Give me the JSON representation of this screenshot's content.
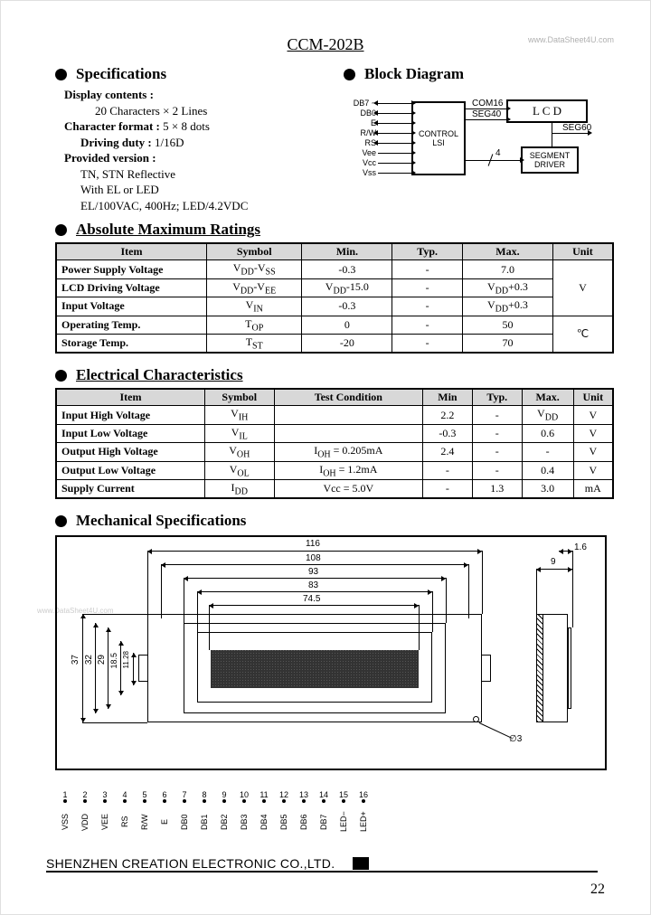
{
  "title": "CCM-202B",
  "watermark": "www.DataSheet4U.com",
  "headings": {
    "specs": "Specifications",
    "block": "Block Diagram",
    "abs": "Absolute Maximum Ratings",
    "elec": "Electrical Characteristics",
    "mech": "Mechanical Specifications"
  },
  "specifications": {
    "display_label": "Display contents :",
    "display_val": "20 Characters × 2 Lines",
    "char_label": "Character format : ",
    "char_val": "5 × 8 dots",
    "duty_label": "Driving duty : ",
    "duty_val": "1/16D",
    "prov_label": "Provided version :",
    "prov_1": "TN, STN Reflective",
    "prov_2": "With EL or LED",
    "prov_3": "EL/100VAC, 400Hz; LED/4.2VDC"
  },
  "block_signals": [
    "DB7 ~",
    "DB0",
    "E",
    "R/W",
    "RS",
    "Vee",
    "Vcc",
    "Vss"
  ],
  "block_labels": {
    "control": "CONTROL\nLSI",
    "lcd": "L  C  D",
    "seg": "SEGMENT\nDRIVER",
    "com16": "COM16",
    "seg40": "SEG40",
    "seg60": "SEG60",
    "four": "4"
  },
  "table_abs": {
    "columns": [
      "Item",
      "Symbol",
      "Min.",
      "Typ.",
      "Max.",
      "Unit"
    ],
    "rows": [
      [
        "Power Supply Voltage",
        "V<sub>DD</sub>-V<sub>SS</sub>",
        "-0.3",
        "-",
        "7.0",
        ""
      ],
      [
        "LCD Driving Voltage",
        "V<sub>DD</sub>-V<sub>EE</sub>",
        "V<sub>DD</sub>-15.0",
        "-",
        "V<sub>DD</sub>+0.3",
        "V"
      ],
      [
        "Input Voltage",
        "V<sub>IN</sub>",
        "-0.3",
        "-",
        "V<sub>DD</sub>+0.3",
        ""
      ],
      [
        "Operating Temp.",
        "T<sub>OP</sub>",
        "0",
        "-",
        "50",
        ""
      ],
      [
        "Storage Temp.",
        "T<sub>ST</sub>",
        "-20",
        "-",
        "70",
        "℃"
      ]
    ],
    "col_widths": [
      "150px",
      "95px",
      "90px",
      "70px",
      "90px",
      "60px"
    ]
  },
  "table_elec": {
    "columns": [
      "Item",
      "Symbol",
      "Test Condition",
      "Min",
      "Typ.",
      "Max.",
      "Unit"
    ],
    "rows": [
      [
        "Input High Voltage",
        "V<sub>IH</sub>",
        "",
        "2.2",
        "-",
        "V<sub>DD</sub>",
        "V"
      ],
      [
        "Input Low Voltage",
        "V<sub>IL</sub>",
        "",
        "-0.3",
        "-",
        "0.6",
        "V"
      ],
      [
        "Output High Voltage",
        "V<sub>OH</sub>",
        "I<sub>OH</sub> = 0.205mA",
        "2.4",
        "-",
        "-",
        "V"
      ],
      [
        "Output Low Voltage",
        "V<sub>OL</sub>",
        "I<sub>OH</sub> = 1.2mA",
        "-",
        "-",
        "0.4",
        "V"
      ],
      [
        "Supply Current",
        "I<sub>DD</sub>",
        "Vcc = 5.0V",
        "-",
        "1.3",
        "3.0",
        "mA"
      ]
    ],
    "col_widths": [
      "150px",
      "70px",
      "150px",
      "50px",
      "50px",
      "52px",
      "40px"
    ]
  },
  "mech": {
    "outer_w": "116",
    "inner_w1": "108",
    "inner_w2": "93",
    "inner_w3": "83",
    "view_w": "74.5",
    "h1": "37",
    "h2": "32",
    "h3": "29",
    "h4": "18.5",
    "h5": "11.28",
    "side_t": "1.6",
    "side_w": "9",
    "hole": "∅3"
  },
  "pins": {
    "numbers": [
      "1",
      "2",
      "3",
      "4",
      "5",
      "6",
      "7",
      "8",
      "9",
      "10",
      "11",
      "12",
      "13",
      "14",
      "15",
      "16"
    ],
    "names": [
      "VSS",
      "VDD",
      "VEE",
      "RS",
      "R/W",
      "E",
      "DB0",
      "DB1",
      "DB2",
      "DB3",
      "DB4",
      "DB5",
      "DB6",
      "DB7",
      "LED−",
      "LED+"
    ]
  },
  "footer": "SHENZHEN CREATION ELECTRONIC CO.,LTD.",
  "page": "22"
}
